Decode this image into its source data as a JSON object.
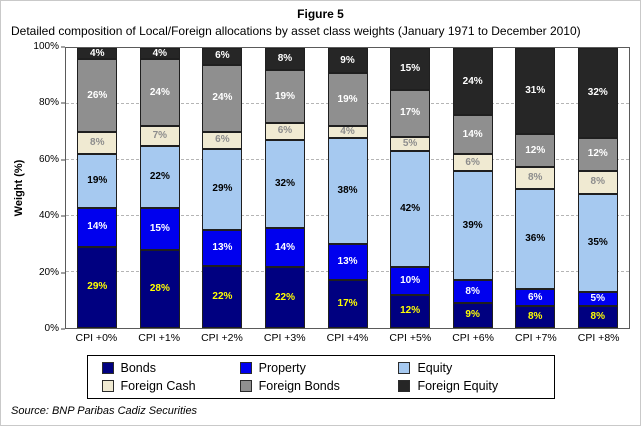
{
  "figure": {
    "title": "Figure 5",
    "subtitle": "Detailed composition of Local/Foreign allocations by asset class weights (January 1971 to December 2010)",
    "source": "Source: BNP Paribas Cadiz Securities"
  },
  "chart_data": {
    "type": "bar",
    "stacked": true,
    "title": "Figure 5",
    "subtitle": "Detailed composition of Local/Foreign allocations by asset class weights (January 1971 to December 2010)",
    "xlabel": "",
    "ylabel": "Weight (%)",
    "ylim": [
      0,
      100
    ],
    "yticks": [
      "0%",
      "20%",
      "40%",
      "60%",
      "80%",
      "100%"
    ],
    "gridlines": [
      20,
      40,
      60,
      80
    ],
    "grid": true,
    "legend_position": "bottom",
    "categories": [
      "CPI +0%",
      "CPI +1%",
      "CPI +2%",
      "CPI +3%",
      "CPI +4%",
      "CPI +5%",
      "CPI +6%",
      "CPI +7%",
      "CPI +8%"
    ],
    "series": [
      {
        "name": "Bonds",
        "color": "#000080",
        "label_color": "#ffff00",
        "values": [
          29,
          28,
          22,
          22,
          17,
          12,
          9,
          8,
          8
        ]
      },
      {
        "name": "Property",
        "color": "#0000ee",
        "label_color": "#ffffff",
        "values": [
          14,
          15,
          13,
          14,
          13,
          10,
          8,
          6,
          5
        ]
      },
      {
        "name": "Equity",
        "color": "#a6c9f0",
        "label_color": "#000000",
        "values": [
          19,
          22,
          29,
          32,
          38,
          42,
          39,
          36,
          35
        ]
      },
      {
        "name": "Foreign Cash",
        "color": "#f0ead2",
        "label_color": "#8c8c8c",
        "values": [
          8,
          7,
          6,
          6,
          4,
          5,
          6,
          8,
          8
        ]
      },
      {
        "name": "Foreign Bonds",
        "color": "#8f8f8f",
        "label_color": "#ffffff",
        "values": [
          26,
          24,
          24,
          19,
          19,
          17,
          14,
          12,
          12
        ]
      },
      {
        "name": "Foreign Equity",
        "color": "#262626",
        "label_color": "#ffffff",
        "values": [
          4,
          4,
          6,
          8,
          9,
          15,
          24,
          31,
          32
        ]
      }
    ]
  }
}
